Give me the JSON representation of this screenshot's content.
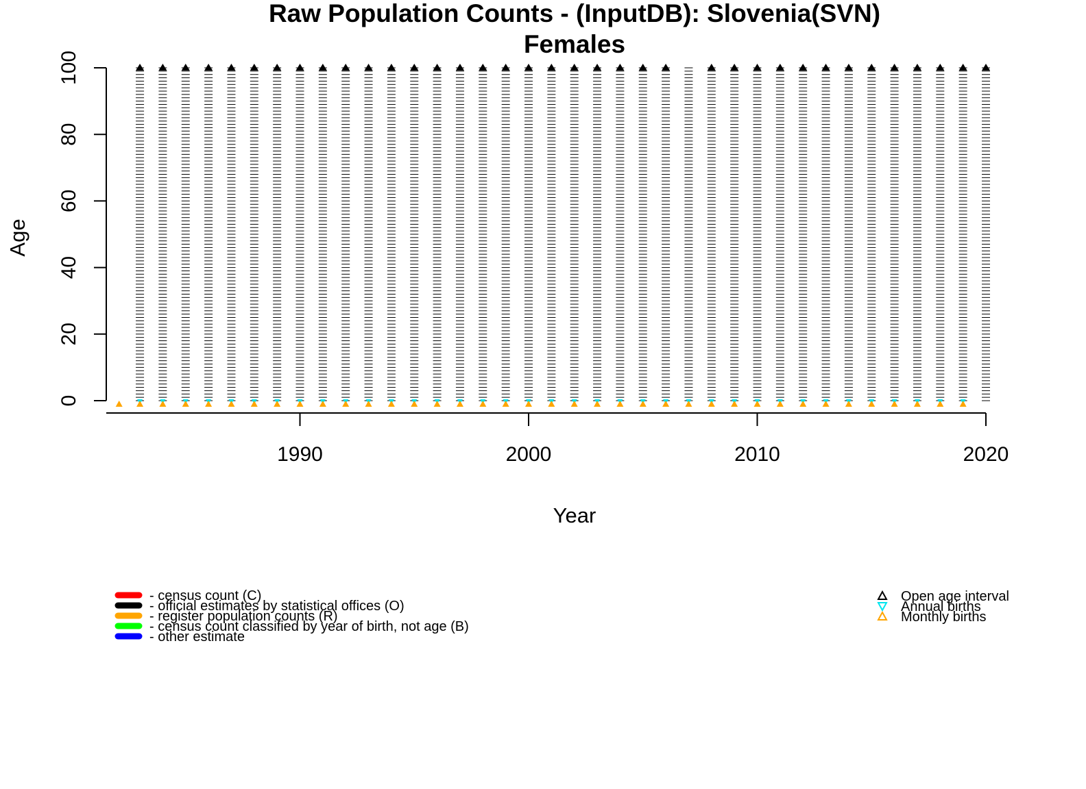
{
  "chart_data": {
    "type": "scatter",
    "title": "Raw Population Counts - (InputDB): Slovenia(SVN)",
    "subtitle": "Females",
    "xlabel": "Year",
    "ylabel": "Age",
    "xlim": [
      1982.5,
      2020
    ],
    "ylim": [
      -2,
      100
    ],
    "x_ticks": [
      1990,
      2000,
      2010,
      2020
    ],
    "y_ticks": [
      0,
      20,
      40,
      60,
      80,
      100
    ],
    "grid": false,
    "single_age_years": [
      1983,
      1984,
      1985,
      1986,
      1987,
      1988,
      1989,
      1990,
      1991,
      1992,
      1993,
      1994,
      1995,
      1996,
      1997,
      1998,
      1999,
      2000,
      2001,
      2002,
      2003,
      2004,
      2005,
      2006,
      2007,
      2008,
      2009,
      2010,
      2011,
      2012,
      2013,
      2014,
      2015,
      2016,
      2017,
      2018,
      2019,
      2020
    ],
    "age_range": [
      0,
      100
    ],
    "source_type": "O",
    "open_age_interval_years": [
      1983,
      1984,
      1985,
      1986,
      1987,
      1988,
      1989,
      1990,
      1991,
      1992,
      1993,
      1994,
      1995,
      1996,
      1997,
      1998,
      1999,
      2000,
      2001,
      2002,
      2003,
      2004,
      2005,
      2006,
      2008,
      2009,
      2010,
      2011,
      2012,
      2013,
      2014,
      2015,
      2016,
      2017,
      2018,
      2019,
      2020
    ],
    "open_age_value": 100,
    "annual_births_years": [
      1983,
      1984,
      1985,
      1986,
      1987,
      1988,
      1989,
      1990,
      1991,
      1992,
      1993,
      1994,
      1995,
      1996,
      1997,
      1998,
      1999,
      2000,
      2001,
      2002,
      2003,
      2004,
      2005,
      2006,
      2007,
      2008,
      2009,
      2010,
      2011,
      2012,
      2013,
      2014,
      2015,
      2016,
      2017,
      2018,
      2019
    ],
    "monthly_births_years": [
      1982,
      1983,
      1984,
      1985,
      1986,
      1987,
      1988,
      1989,
      1990,
      1991,
      1992,
      1993,
      1994,
      1995,
      1996,
      1997,
      1998,
      1999,
      2000,
      2001,
      2002,
      2003,
      2004,
      2005,
      2006,
      2007,
      2008,
      2009,
      2010,
      2011,
      2012,
      2013,
      2014,
      2015,
      2016,
      2017,
      2018,
      2019
    ],
    "legend_position": "bottom",
    "source_legend": [
      {
        "label": "- census count (C)",
        "color": "#ff0000"
      },
      {
        "label": "- official estimates by statistical offices (O)",
        "color": "#000000"
      },
      {
        "label": "- register population counts (R)",
        "color": "#ffa500"
      },
      {
        "label": "- census count classified by year of birth, not age (B)",
        "color": "#00ff00"
      },
      {
        "label": "- other estimate",
        "color": "#0000ff"
      }
    ],
    "symbol_legend": [
      {
        "label": "Open age interval",
        "color": "#000000",
        "symbol": "triangle-up-icon"
      },
      {
        "label": "Annual births",
        "color": "#00e5ee",
        "symbol": "triangle-down-icon"
      },
      {
        "label": "Monthly births",
        "color": "#ffa500",
        "symbol": "triangle-up-icon"
      }
    ]
  }
}
